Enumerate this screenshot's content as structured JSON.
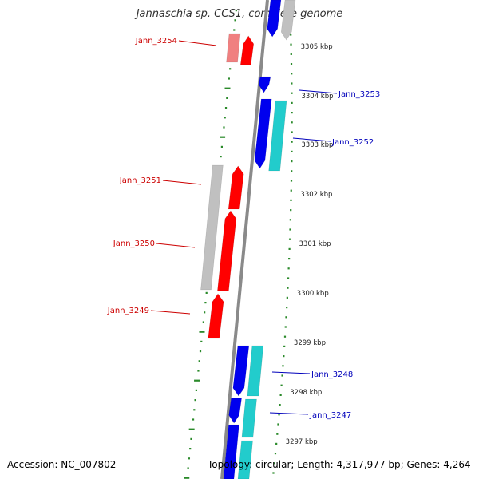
{
  "title": "Jannaschia sp. CCS1, complete genome",
  "accession": "Accession: NC_007802",
  "topology": "Topology: circular; Length: 4,317,977 bp; Genes: 4,264",
  "colors": {
    "backbone": "#8a8a8a",
    "tick": "#2a8a2a",
    "minus_label": "#cc0000",
    "plus_label": "#0000bb",
    "red": "#ff0000",
    "pink": "#f08080",
    "grey": "#c0c0c0",
    "blue": "#0000ee",
    "cyan": "#22cccc"
  },
  "kbp_ticks": [
    "3305 kbp",
    "3304 kbp",
    "3303 kbp",
    "3302 kbp",
    "3301 kbp",
    "3300 kbp",
    "3299 kbp",
    "3298 kbp",
    "3297 kbp"
  ],
  "genes_minus_strand": [
    {
      "label": "Jann_3254"
    },
    {
      "label": "Jann_3251"
    },
    {
      "label": "Jann_3250"
    },
    {
      "label": "Jann_3249"
    }
  ],
  "genes_plus_strand": [
    {
      "label": "Jann_3253"
    },
    {
      "label": "Jann_3252"
    },
    {
      "label": "Jann_3248"
    },
    {
      "label": "Jann_3247"
    }
  ]
}
